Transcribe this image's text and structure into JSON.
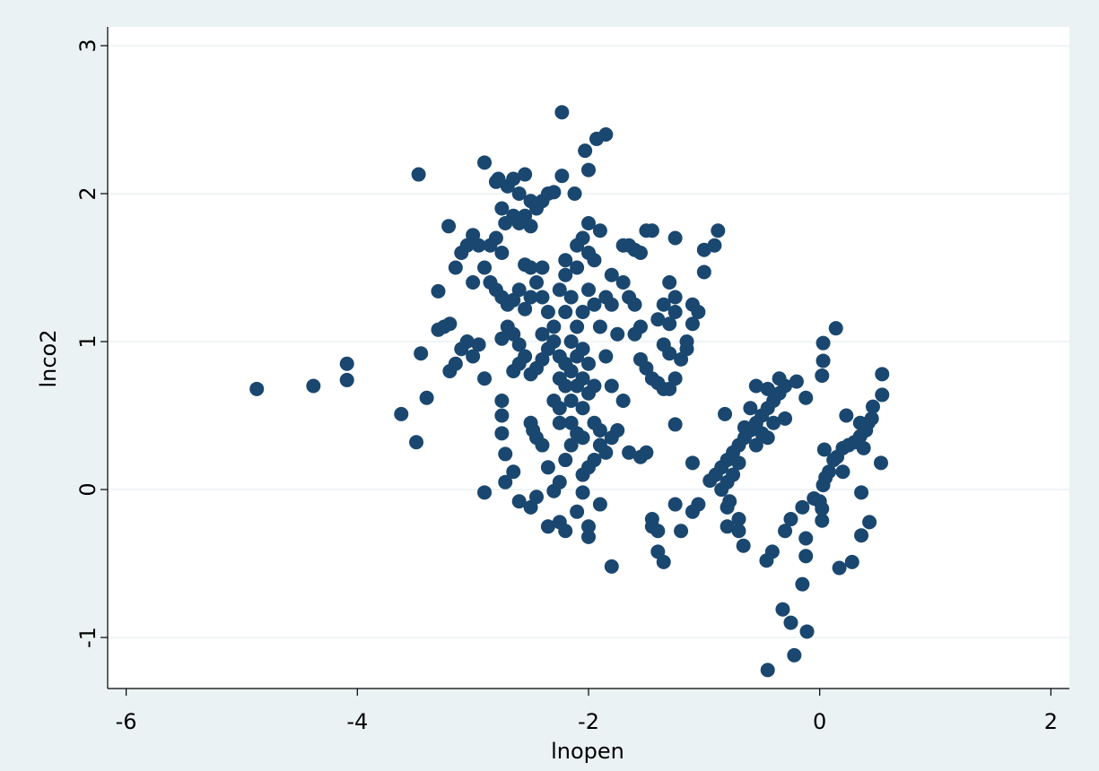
{
  "chart_data": {
    "type": "scatter",
    "x_label": "lnopen",
    "y_label": "lnco2",
    "xlim": [
      -6.16,
      2.16
    ],
    "ylim": [
      -1.345,
      3.127
    ],
    "xticks": [
      -6,
      -4,
      -2,
      0,
      2
    ],
    "yticks": [
      -1,
      0,
      1,
      2,
      3
    ],
    "grid": true,
    "color": "#1a476f",
    "x": [
      -4.87,
      -4.38,
      -4.09,
      -4.09,
      -3.62,
      -3.49,
      -3.47,
      -3.45,
      -3.4,
      -3.3,
      -3.21,
      -2.23,
      -1.85,
      -1.93,
      -2.03,
      -2.0,
      -2.23,
      -2.12,
      -2.9,
      -0.88,
      -0.91,
      -1.0,
      -0.45,
      -0.22,
      -0.11,
      -0.25,
      -0.32,
      -0.15,
      0.14,
      0.03,
      0.03,
      0.02,
      0.54,
      0.54,
      0.46,
      0.23,
      0.53,
      0.28,
      0.17,
      0.43,
      0.36,
      0.36,
      -1.8,
      -0.46,
      -0.41,
      -0.66,
      -0.12,
      -0.12,
      -1.35,
      -1.4,
      -3.15,
      -3.1,
      -3.05,
      -3.0,
      -2.95,
      -2.9,
      -2.85,
      -2.8,
      -2.75,
      -2.7,
      -3.0,
      -3.05,
      -3.1,
      -3.15,
      -3.2,
      -3.0,
      -2.95,
      -2.9,
      -3.25,
      -3.3,
      -3.2,
      -2.75,
      -2.7,
      -2.65,
      -2.6,
      -2.55,
      -2.5,
      -2.45,
      -2.4,
      -2.35,
      -2.3,
      -2.8,
      -2.78,
      -2.72,
      -2.65,
      -2.6,
      -2.55,
      -2.5,
      -2.8,
      -2.85,
      -2.75,
      -2.55,
      -2.5,
      -2.4,
      -2.45,
      -2.6,
      -2.65,
      -2.55,
      -2.5,
      -2.4,
      -2.7,
      -2.75,
      -2.65,
      -2.6,
      -2.55,
      -2.65,
      -2.6,
      -2.5,
      -2.45,
      -2.4,
      -2.75,
      -2.75,
      -2.75,
      -2.72,
      -2.65,
      -2.72,
      -2.9,
      -2.6,
      -2.5,
      -2.48,
      -2.45,
      -2.4,
      -2.5,
      -2.45,
      -2.35,
      -2.3,
      -2.25,
      -2.25,
      -2.2,
      -2.1,
      -2.05,
      -2.0,
      -2.0,
      -1.9,
      -2.35,
      -2.2,
      -2.15,
      -2.05,
      -2.0,
      -1.95,
      -1.9,
      -1.85,
      -1.8,
      -1.75,
      -1.65,
      -1.55,
      -1.5,
      -2.3,
      -2.3,
      -2.25,
      -2.25,
      -2.2,
      -2.2,
      -2.2,
      -2.2,
      -2.15,
      -2.15,
      -2.15,
      -2.15,
      -2.1,
      -2.1,
      -2.1,
      -2.1,
      -2.1,
      -2.05,
      -2.05,
      -2.05,
      -2.05,
      -2.05,
      -2.0,
      -2.0,
      -2.0,
      -2.0,
      -1.95,
      -1.95,
      -1.95,
      -1.95,
      -1.9,
      -1.9,
      -1.9,
      -2.0,
      -2.2,
      -2.25,
      -2.35,
      -2.4,
      -2.35,
      -2.3,
      -2.25,
      -2.25,
      -2.15,
      -2.1,
      -2.05,
      -1.85,
      -1.85,
      -1.8,
      -1.8,
      -1.75,
      -1.7,
      -1.65,
      -1.6,
      -1.55,
      -1.5,
      -1.45,
      -1.7,
      -1.65,
      -1.6,
      -1.55,
      -1.6,
      -1.8,
      -1.7,
      -1.55,
      -1.5,
      -1.45,
      -1.4,
      -1.35,
      -1.3,
      -1.25,
      -1.3,
      -1.35,
      -1.4,
      -1.35,
      -1.3,
      -1.25,
      -1.25,
      -1.3,
      -1.25,
      -1.2,
      -1.15,
      -1.15,
      -1.1,
      -1.1,
      -1.05,
      -1.0,
      -1.25,
      -1.1,
      -1.1,
      -1.05,
      -1.25,
      -1.2,
      -1.45,
      -1.45,
      -1.4,
      -0.95,
      -0.9,
      -0.85,
      -0.8,
      -0.75,
      -0.7,
      -0.65,
      -0.6,
      -0.55,
      -0.5,
      -0.45,
      -0.4,
      -0.35,
      -0.3,
      -0.35,
      -0.45,
      -0.55,
      -0.6,
      -0.65,
      -0.7,
      -0.75,
      -0.8,
      -0.85,
      -0.8,
      -0.78,
      -0.7,
      -0.7,
      -0.8,
      -0.82,
      -0.55,
      -0.5,
      -0.45,
      -0.4,
      -0.3,
      -0.2,
      -0.12,
      -0.3,
      -0.25,
      -0.15,
      -0.05,
      0.0,
      0.02,
      0.03,
      0.05,
      0.08,
      0.12,
      0.15,
      0.2,
      0.25,
      0.3,
      0.35,
      0.4,
      0.42,
      0.38,
      0.04,
      0.02,
      0.2,
      0.35,
      0.45
    ],
    "values": [
      0.68,
      0.7,
      0.85,
      0.74,
      0.51,
      0.32,
      2.13,
      0.92,
      0.62,
      1.34,
      1.78,
      2.55,
      2.4,
      2.37,
      2.29,
      2.16,
      2.12,
      2.0,
      2.21,
      1.75,
      1.65,
      1.47,
      -1.22,
      -1.12,
      -0.96,
      -0.9,
      -0.81,
      -0.64,
      1.09,
      0.99,
      0.87,
      0.77,
      0.78,
      0.64,
      0.56,
      0.5,
      0.18,
      -0.49,
      -0.53,
      -0.22,
      -0.31,
      -0.02,
      -0.52,
      -0.48,
      -0.42,
      -0.38,
      -0.45,
      -0.33,
      -0.49,
      -0.42,
      1.5,
      1.6,
      1.65,
      1.72,
      1.65,
      1.5,
      1.4,
      1.35,
      1.3,
      1.25,
      1.4,
      1.0,
      0.95,
      0.85,
      0.8,
      0.9,
      0.98,
      0.75,
      1.1,
      1.08,
      1.12,
      1.9,
      2.05,
      2.1,
      2.0,
      2.13,
      1.95,
      1.9,
      1.95,
      2.0,
      2.01,
      2.08,
      2.1,
      1.8,
      1.85,
      1.8,
      1.85,
      1.78,
      1.7,
      1.65,
      1.6,
      1.52,
      1.5,
      1.5,
      1.4,
      1.35,
      1.28,
      1.22,
      1.3,
      1.3,
      1.1,
      1.02,
      1.05,
      0.98,
      0.9,
      0.8,
      0.85,
      0.78,
      0.82,
      0.88,
      0.6,
      0.5,
      0.38,
      0.24,
      0.12,
      0.05,
      -0.02,
      -0.08,
      0.45,
      0.4,
      0.35,
      0.3,
      -0.12,
      -0.05,
      -0.25,
      -0.01,
      0.05,
      -0.22,
      -0.28,
      -0.15,
      -0.02,
      -0.25,
      -0.32,
      -0.1,
      0.15,
      0.2,
      0.3,
      0.1,
      0.15,
      0.2,
      0.3,
      0.25,
      0.35,
      0.4,
      0.25,
      0.22,
      0.25,
      1.0,
      1.1,
      0.9,
      0.75,
      0.7,
      0.85,
      1.2,
      1.45,
      1.3,
      1.0,
      0.8,
      0.6,
      0.7,
      0.9,
      1.1,
      1.5,
      1.65,
      1.7,
      1.2,
      0.95,
      0.75,
      0.55,
      0.65,
      0.85,
      1.35,
      1.6,
      1.55,
      1.25,
      0.7,
      0.45,
      0.4,
      1.1,
      1.75,
      1.8,
      1.55,
      1.35,
      1.2,
      1.05,
      0.95,
      0.6,
      0.55,
      0.45,
      0.45,
      0.38,
      0.35,
      0.9,
      1.3,
      1.45,
      1.25,
      1.05,
      1.65,
      1.65,
      1.62,
      1.6,
      1.75,
      1.75,
      1.4,
      1.3,
      1.25,
      1.1,
      1.05,
      0.7,
      0.6,
      0.88,
      0.82,
      0.75,
      0.72,
      0.68,
      0.68,
      0.75,
      0.92,
      0.98,
      1.15,
      1.25,
      1.12,
      1.2,
      1.3,
      1.4,
      1.7,
      0.88,
      0.95,
      1.0,
      1.12,
      1.25,
      1.2,
      1.62,
      0.44,
      0.18,
      -0.15,
      -0.1,
      -0.1,
      -0.28,
      -0.2,
      -0.25,
      -0.28,
      0.06,
      0.1,
      0.15,
      0.2,
      0.25,
      0.3,
      0.35,
      0.4,
      0.45,
      0.5,
      0.55,
      0.6,
      0.65,
      0.7,
      0.75,
      0.68,
      0.7,
      0.55,
      0.42,
      0.18,
      0.1,
      0.05,
      0.0,
      -0.12,
      -0.08,
      -0.2,
      -0.28,
      -0.25,
      0.51,
      0.3,
      0.38,
      0.35,
      0.45,
      0.48,
      0.73,
      0.62,
      -0.28,
      -0.2,
      -0.12,
      -0.06,
      -0.08,
      -0.13,
      0.03,
      0.08,
      0.12,
      0.2,
      0.22,
      0.28,
      0.3,
      0.32,
      0.36,
      0.4,
      0.45,
      0.28,
      0.27,
      -0.21,
      0.12,
      0.45,
      0.48
    ]
  }
}
